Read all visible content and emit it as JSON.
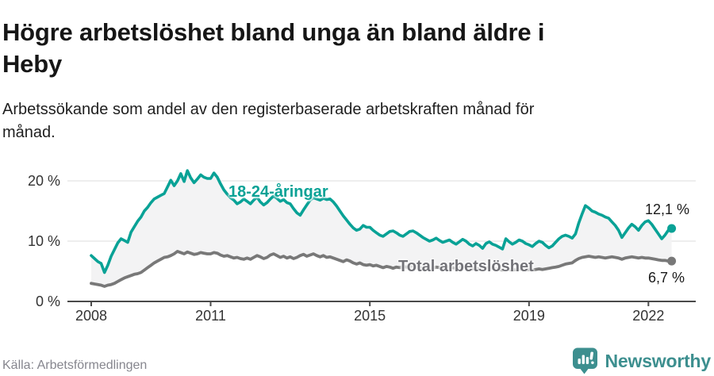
{
  "title": "Högre arbetslöshet bland unga än bland äldre i Heby",
  "title_lines": [
    "Högre arbetslöshet bland unga än bland äldre i",
    "Heby"
  ],
  "subtitle": "Arbetssökande som andel av den registerbaserade arbetskraften månad för månad.",
  "subtitle_lines": [
    "Arbetssökande som andel av den registerbaserade arbetskraften månad för",
    "månad."
  ],
  "footer": {
    "source": "Källa: Arbetsförmedlingen",
    "brand": "Newsworthy"
  },
  "colors": {
    "young_line": "#09a296",
    "total_line": "#787878",
    "area_fill": "#f3f3f4",
    "gridline": "#dcdcdc",
    "axis": "#4a4a4a",
    "brand_teal": "#3d8f8f"
  },
  "chart_data": {
    "type": "line",
    "title": "Högre arbetslöshet bland unga än bland äldre i Heby",
    "subtitle": "Arbetssökande som andel av den registerbaserade arbetskraften månad för månad.",
    "xlabel": "",
    "ylabel": "",
    "x_unit": "monthly from January 2008 to August 2022",
    "x_start_year": 2008,
    "months_per_point": 1,
    "xlim": [
      2008,
      2022.7
    ],
    "ylim": [
      0,
      22.5
    ],
    "grid": true,
    "y_ticks": [
      0,
      10,
      20
    ],
    "y_tick_labels": [
      "0 %",
      "10 %",
      "20 %"
    ],
    "x_ticks": [
      2008,
      2011,
      2015,
      2019,
      2022
    ],
    "x_tick_labels": [
      "2008",
      "2011",
      "2015",
      "2019",
      "2022"
    ],
    "legend_position": "inline-labels",
    "series": [
      {
        "name": "18-24-åringar",
        "color": "#09a296",
        "end_label": "12,1 %",
        "end_value": 12.1,
        "values": [
          7.6,
          7.1,
          6.6,
          6.3,
          4.8,
          6.0,
          7.5,
          8.6,
          9.7,
          10.4,
          10.1,
          9.8,
          11.5,
          12.4,
          13.3,
          14.0,
          15.0,
          15.6,
          16.4,
          17.0,
          17.3,
          17.6,
          17.9,
          19.0,
          20.1,
          19.2,
          20.0,
          21.2,
          19.9,
          21.7,
          20.5,
          19.7,
          20.3,
          21.0,
          20.6,
          20.4,
          20.4,
          21.3,
          20.6,
          19.5,
          18.5,
          17.8,
          17.2,
          16.8,
          16.2,
          16.5,
          17.0,
          16.6,
          16.2,
          16.8,
          17.3,
          16.5,
          16.0,
          16.4,
          17.0,
          17.5,
          17.1,
          16.6,
          16.9,
          16.4,
          16.2,
          15.4,
          14.7,
          14.3,
          15.2,
          16.0,
          16.8,
          17.2,
          17.0,
          16.8,
          17.1,
          16.9,
          17.0,
          16.5,
          15.8,
          15.0,
          14.2,
          13.5,
          12.8,
          12.2,
          11.8,
          12.0,
          12.6,
          12.3,
          12.3,
          11.8,
          11.4,
          11.0,
          10.8,
          11.2,
          11.6,
          11.7,
          11.4,
          11.0,
          10.8,
          11.2,
          11.6,
          11.7,
          11.4,
          11.0,
          10.6,
          10.3,
          10.0,
          10.2,
          10.5,
          10.1,
          9.8,
          10.0,
          10.2,
          9.8,
          9.5,
          9.9,
          10.3,
          10.0,
          9.5,
          9.2,
          9.6,
          9.3,
          8.8,
          9.6,
          9.9,
          9.5,
          9.3,
          9.0,
          8.7,
          10.4,
          9.9,
          9.5,
          9.8,
          10.2,
          10.0,
          9.6,
          9.4,
          9.1,
          9.6,
          10.0,
          9.8,
          9.3,
          8.9,
          9.2,
          9.8,
          10.4,
          10.8,
          11.0,
          10.8,
          10.5,
          11.2,
          13.0,
          14.5,
          15.9,
          15.5,
          15.0,
          14.8,
          14.5,
          14.3,
          14.0,
          13.8,
          13.2,
          12.6,
          11.8,
          10.6,
          11.4,
          12.2,
          12.8,
          12.4,
          11.8,
          12.6,
          13.2,
          13.4,
          12.8,
          12.0,
          11.2,
          10.4,
          11.0,
          11.8,
          12.1
        ]
      },
      {
        "name": "Total arbetslöshet",
        "color": "#787878",
        "end_label": "6,7 %",
        "end_value": 6.7,
        "values": [
          3.0,
          2.9,
          2.8,
          2.7,
          2.5,
          2.7,
          2.8,
          3.0,
          3.3,
          3.6,
          3.9,
          4.1,
          4.3,
          4.5,
          4.6,
          4.8,
          5.2,
          5.6,
          6.0,
          6.4,
          6.7,
          7.0,
          7.3,
          7.4,
          7.6,
          7.9,
          8.3,
          8.1,
          7.9,
          8.2,
          8.0,
          7.8,
          7.9,
          8.1,
          8.0,
          7.9,
          7.9,
          8.1,
          8.0,
          7.7,
          7.5,
          7.6,
          7.4,
          7.2,
          7.3,
          7.1,
          7.0,
          7.2,
          7.0,
          7.3,
          7.6,
          7.4,
          7.1,
          7.3,
          7.7,
          7.9,
          7.6,
          7.3,
          7.5,
          7.2,
          7.4,
          7.1,
          7.3,
          7.6,
          7.8,
          7.5,
          7.7,
          7.9,
          7.6,
          7.4,
          7.6,
          7.3,
          7.4,
          7.2,
          7.0,
          6.8,
          6.6,
          6.9,
          6.7,
          6.4,
          6.2,
          6.4,
          6.1,
          6.0,
          6.1,
          5.9,
          6.0,
          5.8,
          5.6,
          5.8,
          5.7,
          5.5,
          5.7,
          5.6,
          5.8,
          5.7,
          5.8,
          5.9,
          5.7,
          5.6,
          5.5,
          5.6,
          5.4,
          5.5,
          5.7,
          5.6,
          5.5,
          5.6,
          5.7,
          5.6,
          5.5,
          5.6,
          5.8,
          5.7,
          5.5,
          5.4,
          5.5,
          5.3,
          5.4,
          5.5,
          5.6,
          5.5,
          5.4,
          5.3,
          5.2,
          5.4,
          5.3,
          5.2,
          5.3,
          5.4,
          5.3,
          5.2,
          5.3,
          5.2,
          5.3,
          5.4,
          5.3,
          5.4,
          5.5,
          5.6,
          5.7,
          5.8,
          6.0,
          6.2,
          6.3,
          6.4,
          6.8,
          7.1,
          7.3,
          7.4,
          7.5,
          7.4,
          7.3,
          7.4,
          7.3,
          7.2,
          7.3,
          7.4,
          7.3,
          7.2,
          7.0,
          7.2,
          7.3,
          7.4,
          7.3,
          7.2,
          7.3,
          7.2,
          7.2,
          7.1,
          7.0,
          6.9,
          6.8,
          6.8,
          6.7,
          6.7
        ]
      }
    ]
  }
}
